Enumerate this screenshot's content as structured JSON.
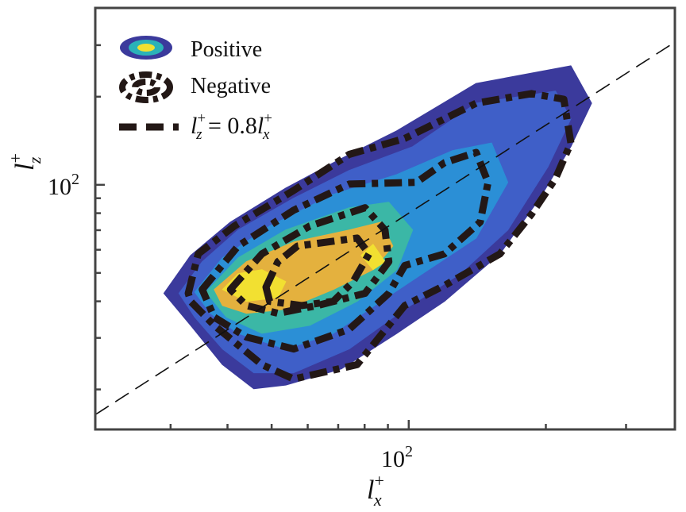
{
  "chart_data": {
    "type": "contour",
    "xscale": "log",
    "yscale": "log",
    "xlim": [
      20.5,
      384
    ],
    "ylim": [
      14.6,
      402
    ],
    "grid": false,
    "xlabel": {
      "base": "l",
      "sup": "+",
      "sub": "x"
    },
    "ylabel": {
      "base": "l",
      "sup": "+",
      "sub": "z"
    },
    "x_major_ticks": [
      {
        "value": 100,
        "label_base": "10",
        "label_exp": "2"
      }
    ],
    "y_major_ticks": [
      {
        "value": 100,
        "label_base": "10",
        "label_exp": "2"
      }
    ],
    "x_minor_ticks": [
      30,
      40,
      50,
      60,
      70,
      80,
      90,
      200,
      300
    ],
    "y_minor_ticks": [
      20,
      30,
      40,
      50,
      60,
      70,
      80,
      90,
      200,
      300
    ],
    "legend": {
      "placement": "top-left",
      "entries": [
        {
          "label": "Positive",
          "kind": "filled-contour"
        },
        {
          "label": "Negative",
          "kind": "dashed-contour"
        },
        {
          "label_parts": [
            "l",
            "+",
            "z",
            " = 0.8",
            "l",
            "+",
            "x"
          ],
          "kind": "dashed-line"
        }
      ]
    },
    "positive_levels": [
      {
        "color": "#3b3a9c",
        "polygon": [
          [
            29.0,
            42.6
          ],
          [
            33.2,
            57.4
          ],
          [
            40.6,
            74.6
          ],
          [
            53.7,
            97.5
          ],
          [
            71.1,
            123
          ],
          [
            94.2,
            153
          ],
          [
            140.6,
            222
          ],
          [
            227,
            255
          ],
          [
            252,
            190
          ],
          [
            227,
            135
          ],
          [
            194,
            90
          ],
          [
            158.6,
            58.1
          ],
          [
            119.8,
            40.0
          ],
          [
            94.2,
            31.1
          ],
          [
            71.1,
            23.5
          ],
          [
            53.7,
            20.7
          ],
          [
            45.7,
            20.1
          ],
          [
            39.0,
            24.3
          ],
          [
            33.2,
            33.1
          ]
        ]
      },
      {
        "color": "#3f5fc8",
        "polygon": [
          [
            31.3,
            42.6
          ],
          [
            35.2,
            54.6
          ],
          [
            42.2,
            70.1
          ],
          [
            55.9,
            90
          ],
          [
            74.0,
            112
          ],
          [
            102,
            135
          ],
          [
            140.6,
            190
          ],
          [
            210,
            209
          ],
          [
            227,
            168
          ],
          [
            202,
            115
          ],
          [
            165,
            70.1
          ],
          [
            129.8,
            49.7
          ],
          [
            98.0,
            37.6
          ],
          [
            74.0,
            27.5
          ],
          [
            55.9,
            22.8
          ],
          [
            45.7,
            22.8
          ],
          [
            39.0,
            27.5
          ],
          [
            33.9,
            35.3
          ]
        ]
      },
      {
        "color": "#2b8fd6",
        "polygon": [
          [
            33.9,
            43.0
          ],
          [
            39.0,
            56.3
          ],
          [
            49.5,
            72.3
          ],
          [
            68.3,
            92.8
          ],
          [
            94.2,
            108.5
          ],
          [
            124.7,
            130.8
          ],
          [
            152,
            139
          ],
          [
            165,
            102
          ],
          [
            140.6,
            65.8
          ],
          [
            110.5,
            51.3
          ],
          [
            86.9,
            40.0
          ],
          [
            68.3,
            31.1
          ],
          [
            53.7,
            27.5
          ],
          [
            42.2,
            31.1
          ],
          [
            36.7,
            36.4
          ]
        ]
      },
      {
        "color": "#3bb7a6",
        "polygon": [
          [
            35.9,
            43.0
          ],
          [
            42.2,
            56.3
          ],
          [
            53.7,
            70.1
          ],
          [
            74.0,
            83.5
          ],
          [
            90.4,
            87.2
          ],
          [
            102,
            70.1
          ],
          [
            94.2,
            51.3
          ],
          [
            77.0,
            40.0
          ],
          [
            60.6,
            33.1
          ],
          [
            47.6,
            31.1
          ],
          [
            39.8,
            35.3
          ]
        ]
      },
      {
        "color": "#e4b13e",
        "polygon": [
          [
            37.4,
            43.9
          ],
          [
            44.0,
            54.6
          ],
          [
            55.9,
            63.8
          ],
          [
            74.0,
            70.1
          ],
          [
            86.9,
            74.6
          ],
          [
            92.3,
            61.8
          ],
          [
            83.5,
            51.3
          ],
          [
            68.3,
            43.9
          ],
          [
            53.7,
            37.6
          ],
          [
            44.0,
            36.4
          ],
          [
            39.0,
            38.7
          ]
        ]
      },
      {
        "color": "#f2e031",
        "polygon": [
          [
            39.0,
            43.9
          ],
          [
            42.2,
            49.7
          ],
          [
            47.6,
            51.3
          ],
          [
            53.7,
            46.7
          ],
          [
            51.6,
            41.2
          ],
          [
            44.0,
            40.0
          ]
        ]
      },
      {
        "color": "#f2e031",
        "polygon": [
          [
            78.6,
            57.4
          ],
          [
            83.5,
            62.6
          ],
          [
            88.7,
            54.6
          ],
          [
            83.5,
            51.3
          ]
        ]
      }
    ],
    "negative_levels": [
      {
        "polygon": [
          [
            32.8,
            42.6
          ],
          [
            34.5,
            58.1
          ],
          [
            41.4,
            72.3
          ],
          [
            55.9,
            95.7
          ],
          [
            74.0,
            127
          ],
          [
            98.0,
            144
          ],
          [
            140.6,
            190
          ],
          [
            186,
            205
          ],
          [
            219,
            196
          ],
          [
            227,
            139
          ],
          [
            210,
            105
          ],
          [
            186,
            79.4
          ],
          [
            158.6,
            58.1
          ],
          [
            119.8,
            45.3
          ],
          [
            98.0,
            38.7
          ],
          [
            77.0,
            24.3
          ],
          [
            55.9,
            21.7
          ],
          [
            47.6,
            24.3
          ],
          [
            37.4,
            33.1
          ],
          [
            33.2,
            40.0
          ]
        ]
      },
      {
        "polygon": [
          [
            35.2,
            43.9
          ],
          [
            42.2,
            61.8
          ],
          [
            55.9,
            81.9
          ],
          [
            74.0,
            100.6
          ],
          [
            104,
            102
          ],
          [
            119.8,
            119
          ],
          [
            140.6,
            129
          ],
          [
            149.3,
            102
          ],
          [
            143.5,
            74.6
          ],
          [
            119.8,
            58.1
          ],
          [
            98.0,
            53.0
          ],
          [
            90.4,
            42.6
          ],
          [
            74.0,
            32.1
          ],
          [
            55.9,
            27.5
          ],
          [
            44.0,
            30.2
          ],
          [
            37.4,
            35.3
          ]
        ]
      },
      {
        "polygon": [
          [
            40.6,
            43.9
          ],
          [
            47.6,
            58.1
          ],
          [
            60.6,
            72.3
          ],
          [
            80.2,
            83.5
          ],
          [
            88.7,
            70.1
          ],
          [
            90.4,
            54.6
          ],
          [
            80.2,
            42.6
          ],
          [
            63.0,
            38.7
          ],
          [
            51.6,
            36.4
          ],
          [
            44.0,
            38.7
          ]
        ]
      },
      {
        "polygon": [
          [
            48.6,
            44.7
          ],
          [
            51.6,
            54.6
          ],
          [
            57.0,
            61.8
          ],
          [
            77.0,
            65.8
          ],
          [
            81.8,
            58.1
          ],
          [
            75.5,
            46.7
          ],
          [
            68.3,
            40.0
          ],
          [
            58.2,
            38.7
          ],
          [
            49.5,
            40.0
          ]
        ]
      }
    ],
    "reference_line": {
      "slope": 0.8,
      "style": "dashed"
    },
    "colors": {
      "negative": "#231816",
      "axis": "#444444"
    }
  }
}
